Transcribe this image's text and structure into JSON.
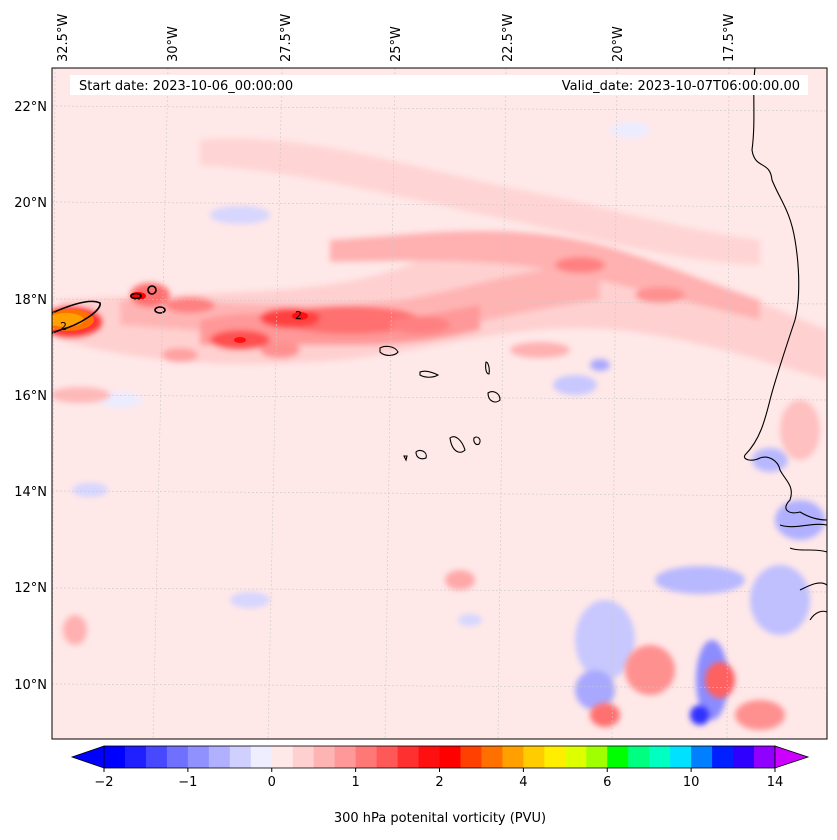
{
  "header": {
    "start_date": "Start date: 2023-10-06_00:00:00",
    "valid_date": "Valid_date: 2023-10-07T06:00:00.00"
  },
  "axes": {
    "lon_labels": [
      "32.5°W",
      "30°W",
      "27.5°W",
      "25°W",
      "22.5°W",
      "20°W",
      "17.5°W"
    ],
    "lat_labels": [
      "22°N",
      "20°N",
      "18°N",
      "16°N",
      "14°N",
      "12°N",
      "10°N"
    ],
    "contour_label": "2"
  },
  "colorbar": {
    "title": "300 hPa potenital vorticity (PVU)",
    "tick_labels": [
      "−2",
      "−1",
      "0",
      "1",
      "2",
      "4",
      "6",
      "10",
      "14"
    ],
    "colors": [
      "#0000ff",
      "#2020ff",
      "#4848ff",
      "#7070ff",
      "#9090ff",
      "#b0b0ff",
      "#d0d0ff",
      "#eeeeff",
      "#ffe8e8",
      "#ffd0d0",
      "#ffb4b4",
      "#ff9898",
      "#ff7878",
      "#ff5858",
      "#ff3030",
      "#ff1010",
      "#ff0000",
      "#ff4000",
      "#ff7000",
      "#ffa000",
      "#ffcc00",
      "#ffee00",
      "#ddff00",
      "#a0ff00",
      "#00ff00",
      "#00ff80",
      "#00ffc0",
      "#00e0ff",
      "#0080ff",
      "#0020ff",
      "#3000ff",
      "#9000ff"
    ],
    "under_color": "#0000ff",
    "over_color": "#cc00ff"
  },
  "colors": {
    "background_field": "#ffe8e8",
    "coastline": "#000000",
    "gridline": "#c8c8c8"
  }
}
